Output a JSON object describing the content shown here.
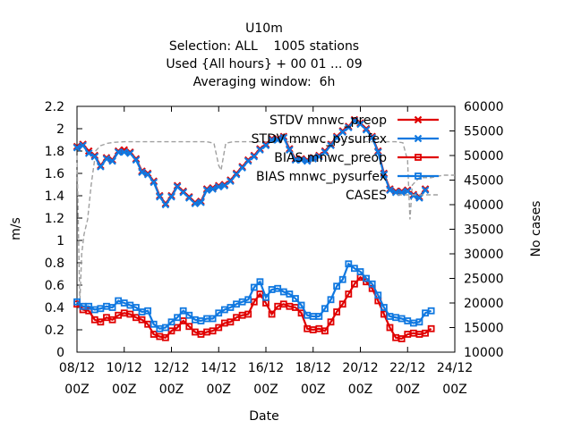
{
  "chart_data": {
    "type": "line",
    "title_lines": [
      "U10m",
      "Selection: ALL    1005 stations",
      "Used {All hours} + 00 01 ... 09",
      "Averaging window:  6h"
    ],
    "xlabel": "Date",
    "ylabel": "m/s",
    "y2label": "No cases",
    "x_ticks": [
      {
        "day": 0,
        "l1": "08/12",
        "l2": "00Z"
      },
      {
        "day": 2,
        "l1": "10/12",
        "l2": "00Z"
      },
      {
        "day": 4,
        "l1": "12/12",
        "l2": "00Z"
      },
      {
        "day": 6,
        "l1": "14/12",
        "l2": "00Z"
      },
      {
        "day": 8,
        "l1": "16/12",
        "l2": "00Z"
      },
      {
        "day": 10,
        "l1": "18/12",
        "l2": "00Z"
      },
      {
        "day": 12,
        "l1": "20/12",
        "l2": "00Z"
      },
      {
        "day": 14,
        "l1": "22/12",
        "l2": "00Z"
      },
      {
        "day": 16,
        "l1": "24/12",
        "l2": "00Z"
      }
    ],
    "xlim": [
      0,
      16
    ],
    "ylim": [
      0,
      2.2
    ],
    "y_ticks": [
      0,
      0.2,
      0.4,
      0.6,
      0.8,
      1,
      1.2,
      1.4,
      1.6,
      1.8,
      2,
      2.2
    ],
    "y2lim": [
      10000,
      60000
    ],
    "y2_ticks": [
      10000,
      15000,
      20000,
      25000,
      30000,
      35000,
      40000,
      45000,
      50000,
      55000,
      60000
    ],
    "grid": false,
    "legend_position": "top-right",
    "x_step_days": 0.25,
    "series": [
      {
        "name": "STDV mnwc_preop",
        "color": "#e00000",
        "marker": "x",
        "axis": "y1",
        "values": [
          1.84,
          1.86,
          1.8,
          1.76,
          1.67,
          1.74,
          1.72,
          1.8,
          1.81,
          1.79,
          1.73,
          1.62,
          1.6,
          1.53,
          1.4,
          1.33,
          1.4,
          1.49,
          1.44,
          1.39,
          1.34,
          1.35,
          1.46,
          1.47,
          1.49,
          1.5,
          1.54,
          1.6,
          1.66,
          1.72,
          1.76,
          1.82,
          1.86,
          1.91,
          1.91,
          1.93,
          1.82,
          1.73,
          1.73,
          1.72,
          1.74,
          1.76,
          1.8,
          1.86,
          1.93,
          1.98,
          2.02,
          2.08,
          2.05,
          2.0,
          1.93,
          1.8,
          1.6,
          1.46,
          1.44,
          1.44,
          1.45,
          1.41,
          1.39,
          1.46
        ]
      },
      {
        "name": "STDV mnwc_pysurfex",
        "color": "#1078e0",
        "marker": "x",
        "axis": "y1",
        "values": [
          1.83,
          1.85,
          1.78,
          1.75,
          1.66,
          1.73,
          1.71,
          1.79,
          1.79,
          1.78,
          1.72,
          1.61,
          1.59,
          1.52,
          1.39,
          1.32,
          1.39,
          1.48,
          1.43,
          1.38,
          1.33,
          1.34,
          1.45,
          1.46,
          1.48,
          1.49,
          1.53,
          1.59,
          1.65,
          1.71,
          1.75,
          1.81,
          1.85,
          1.9,
          1.9,
          1.92,
          1.81,
          1.72,
          1.72,
          1.71,
          1.73,
          1.75,
          1.79,
          1.85,
          1.92,
          1.97,
          2.01,
          2.07,
          2.04,
          1.99,
          1.92,
          1.79,
          1.59,
          1.45,
          1.43,
          1.43,
          1.44,
          1.4,
          1.38,
          1.45
        ]
      },
      {
        "name": "BIAS mnwc_preop",
        "color": "#e00000",
        "marker": "square",
        "axis": "y1",
        "values": [
          0.43,
          0.38,
          0.37,
          0.29,
          0.27,
          0.31,
          0.29,
          0.33,
          0.35,
          0.34,
          0.31,
          0.29,
          0.25,
          0.16,
          0.14,
          0.13,
          0.19,
          0.22,
          0.28,
          0.23,
          0.18,
          0.16,
          0.18,
          0.19,
          0.22,
          0.26,
          0.27,
          0.31,
          0.33,
          0.34,
          0.45,
          0.52,
          0.44,
          0.34,
          0.41,
          0.43,
          0.41,
          0.4,
          0.35,
          0.21,
          0.2,
          0.21,
          0.19,
          0.27,
          0.36,
          0.43,
          0.52,
          0.61,
          0.67,
          0.63,
          0.57,
          0.46,
          0.34,
          0.22,
          0.13,
          0.12,
          0.16,
          0.17,
          0.16,
          0.17,
          0.21
        ]
      },
      {
        "name": "BIAS mnwc_pysurfex",
        "color": "#1078e0",
        "marker": "square",
        "axis": "y1",
        "values": [
          0.45,
          0.41,
          0.41,
          0.38,
          0.39,
          0.41,
          0.4,
          0.46,
          0.44,
          0.42,
          0.4,
          0.36,
          0.37,
          0.25,
          0.21,
          0.22,
          0.27,
          0.31,
          0.37,
          0.33,
          0.29,
          0.28,
          0.3,
          0.3,
          0.35,
          0.38,
          0.4,
          0.43,
          0.45,
          0.47,
          0.58,
          0.63,
          0.49,
          0.56,
          0.57,
          0.54,
          0.52,
          0.48,
          0.42,
          0.33,
          0.32,
          0.32,
          0.39,
          0.47,
          0.59,
          0.65,
          0.79,
          0.75,
          0.72,
          0.66,
          0.61,
          0.51,
          0.4,
          0.32,
          0.31,
          0.3,
          0.28,
          0.26,
          0.27,
          0.35,
          0.37
        ]
      },
      {
        "name": "CASES",
        "color": "#a0a0a0",
        "marker": "none",
        "dash": true,
        "axis": "y2",
        "x": [
          0,
          0.12,
          0.2,
          0.3,
          0.45,
          0.6,
          0.8,
          1.0,
          1.3,
          1.6,
          2.0,
          2.5,
          3.0,
          3.5,
          4.0,
          4.5,
          5.0,
          5.5,
          5.8,
          6.0,
          6.1,
          6.3,
          6.6,
          7.0,
          7.5,
          8.0,
          9.0,
          10.0,
          11.0,
          11.5,
          12.0,
          12.5,
          13.0,
          13.5,
          13.8,
          14.0,
          14.1,
          14.2,
          14.5,
          15.0,
          15.5,
          16.0
        ],
        "values": [
          50000,
          20000,
          30000,
          34000,
          37000,
          44000,
          51000,
          52000,
          52500,
          52700,
          52800,
          52800,
          52800,
          52800,
          52800,
          52800,
          52800,
          52800,
          52500,
          48000,
          47000,
          52500,
          52800,
          52800,
          52800,
          52800,
          52800,
          52800,
          52800,
          52800,
          52800,
          52800,
          52800,
          52800,
          52600,
          49000,
          37000,
          44000,
          45500,
          45500,
          46000,
          46000
        ]
      }
    ]
  }
}
